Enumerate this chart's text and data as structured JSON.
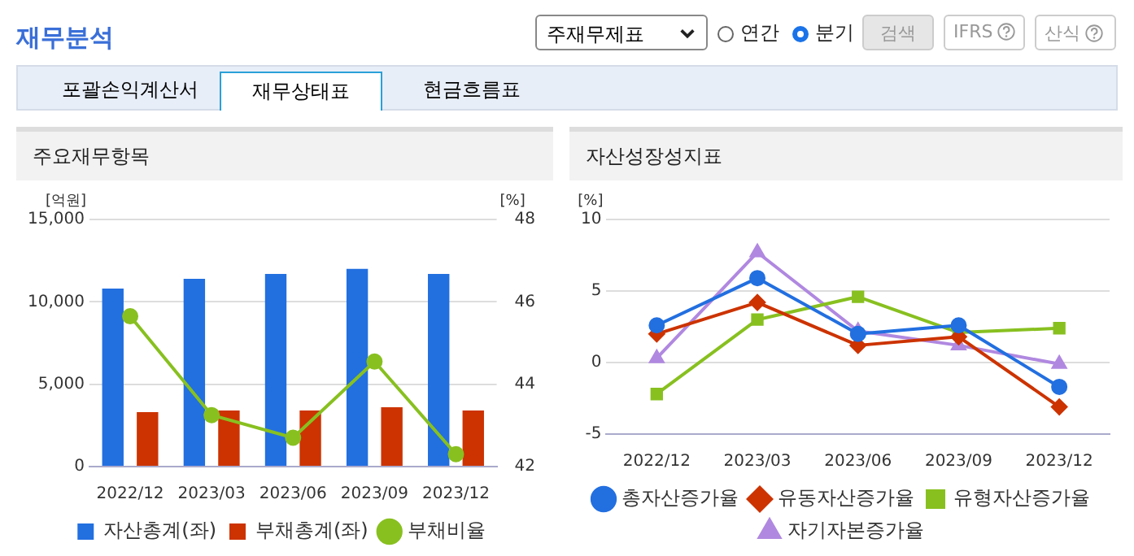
{
  "chart_data": [
    {
      "type": "other",
      "title": "재무분석",
      "annotations": [
        "주재무제표",
        "연간",
        "분기",
        "검색",
        "IFRS",
        "산식",
        "포괄손익계산서",
        "재무상태표",
        "현금흐름표"
      ]
    },
    {
      "type": "bar",
      "title": "주요재무항목",
      "ylabel": "[억원]",
      "y2label": "[%]",
      "categories": [
        "2022/12",
        "2023/03",
        "2023/06",
        "2023/09",
        "2023/12"
      ],
      "series": [
        {
          "name": "자산총계(좌)",
          "color": "#226fe0",
          "values": [
            10800,
            11400,
            11700,
            12000,
            11700
          ]
        },
        {
          "name": "부채총계(좌)",
          "color": "#cc3300",
          "values": [
            3300,
            3400,
            3400,
            3600,
            3400
          ]
        },
        {
          "name": "부채비율",
          "type": "line",
          "axis": "y2",
          "marker": "circle",
          "color": "#88c020",
          "values": [
            45.65,
            43.25,
            42.7,
            44.55,
            42.3
          ]
        }
      ],
      "ylim": [
        0,
        15000
      ],
      "yticks": [
        0,
        {
          "value": 5000,
          "label": "5,000"
        },
        {
          "value": 10000,
          "label": "10,000"
        },
        {
          "value": 15000,
          "label": "15,000"
        }
      ],
      "y2lim": [
        42,
        48
      ],
      "y2ticks": [
        42,
        44,
        46,
        48
      ],
      "grid": "y",
      "legend": "bottom"
    },
    {
      "type": "line",
      "title": "자산성장성지표",
      "ylabel": "[%]",
      "categories": [
        "2022/12",
        "2023/03",
        "2023/06",
        "2023/09",
        "2023/12"
      ],
      "series": [
        {
          "name": "총자산증가율",
          "marker": "circle",
          "color": "#226fe0",
          "values": [
            2.6,
            5.9,
            2.0,
            2.6,
            -1.7
          ]
        },
        {
          "name": "유동자산증가율",
          "marker": "diamond",
          "color": "#cc3300",
          "values": [
            2.0,
            4.2,
            1.2,
            1.8,
            -3.1
          ]
        },
        {
          "name": "유형자산증가율",
          "marker": "square",
          "color": "#88c020",
          "values": [
            -2.2,
            3.0,
            4.6,
            2.1,
            2.4
          ]
        },
        {
          "name": "자기자본증가율",
          "marker": "triangle",
          "color": "#b088e0",
          "values": [
            0.3,
            7.7,
            2.2,
            1.2,
            -0.1
          ]
        }
      ],
      "ylim": [
        -5,
        10
      ],
      "yticks": [
        -5,
        0,
        5,
        10
      ],
      "grid": "y",
      "legend": "bottom"
    }
  ]
}
